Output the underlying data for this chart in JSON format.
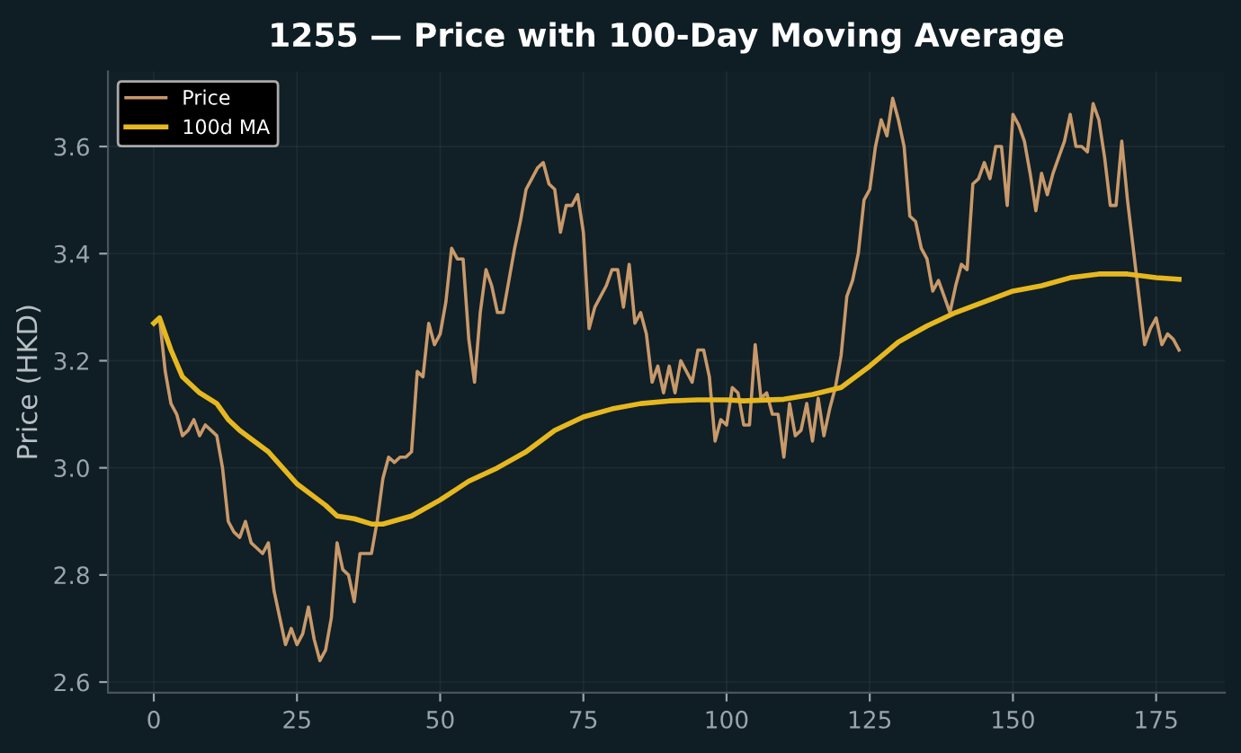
{
  "chart_data": {
    "type": "line",
    "title": "1255 — Price with 100-Day Moving Average",
    "ylabel": "Price (HKD)",
    "series": [
      {
        "name": "Price",
        "color": "#c8996a",
        "x": [
          0,
          1,
          2,
          3,
          4,
          5,
          6,
          7,
          8,
          9,
          10,
          11,
          12,
          13,
          14,
          15,
          16,
          17,
          18,
          19,
          20,
          21,
          22,
          23,
          24,
          25,
          26,
          27,
          28,
          29,
          30,
          31,
          32,
          33,
          34,
          35,
          36,
          37,
          38,
          39,
          40,
          41,
          42,
          43,
          44,
          45,
          46,
          47,
          48,
          49,
          50,
          51,
          52,
          53,
          54,
          55,
          56,
          57,
          58,
          59,
          60,
          61,
          62,
          63,
          64,
          65,
          66,
          67,
          68,
          69,
          70,
          71,
          72,
          73,
          74,
          75,
          76,
          77,
          78,
          79,
          80,
          81,
          82,
          83,
          84,
          85,
          86,
          87,
          88,
          89,
          90,
          91,
          92,
          93,
          94,
          95,
          96,
          97,
          98,
          99,
          100,
          101,
          102,
          103,
          104,
          105,
          106,
          107,
          108,
          109,
          110,
          111,
          112,
          113,
          114,
          115,
          116,
          117,
          118,
          119,
          120,
          121,
          122,
          123,
          124,
          125,
          126,
          127,
          128,
          129,
          130,
          131,
          132,
          133,
          134,
          135,
          136,
          137,
          138,
          139,
          140,
          141,
          142,
          143,
          144,
          145,
          146,
          147,
          148,
          149,
          150,
          151,
          152,
          153,
          154,
          155,
          156,
          157,
          158,
          159,
          160,
          161,
          162,
          163,
          164,
          165,
          166,
          167,
          168,
          169,
          170,
          171,
          172,
          173,
          174,
          175,
          176,
          177,
          178,
          179
        ],
        "values": [
          3.27,
          3.28,
          3.18,
          3.12,
          3.1,
          3.06,
          3.07,
          3.09,
          3.06,
          3.08,
          3.07,
          3.06,
          3.0,
          2.9,
          2.88,
          2.87,
          2.9,
          2.86,
          2.85,
          2.84,
          2.86,
          2.77,
          2.72,
          2.67,
          2.7,
          2.67,
          2.69,
          2.74,
          2.68,
          2.64,
          2.66,
          2.72,
          2.86,
          2.81,
          2.8,
          2.75,
          2.84,
          2.84,
          2.84,
          2.9,
          2.98,
          3.02,
          3.01,
          3.02,
          3.02,
          3.03,
          3.18,
          3.17,
          3.27,
          3.23,
          3.25,
          3.31,
          3.41,
          3.39,
          3.39,
          3.24,
          3.16,
          3.29,
          3.37,
          3.34,
          3.29,
          3.29,
          3.35,
          3.41,
          3.46,
          3.52,
          3.54,
          3.56,
          3.57,
          3.53,
          3.52,
          3.44,
          3.49,
          3.49,
          3.51,
          3.44,
          3.26,
          3.3,
          3.32,
          3.34,
          3.37,
          3.37,
          3.3,
          3.38,
          3.27,
          3.29,
          3.25,
          3.16,
          3.19,
          3.14,
          3.19,
          3.14,
          3.2,
          3.18,
          3.16,
          3.22,
          3.22,
          3.17,
          3.05,
          3.09,
          3.08,
          3.15,
          3.14,
          3.08,
          3.08,
          3.23,
          3.13,
          3.14,
          3.1,
          3.1,
          3.02,
          3.12,
          3.06,
          3.07,
          3.12,
          3.05,
          3.13,
          3.06,
          3.11,
          3.15,
          3.21,
          3.32,
          3.35,
          3.4,
          3.5,
          3.52,
          3.6,
          3.65,
          3.62,
          3.69,
          3.65,
          3.6,
          3.47,
          3.46,
          3.41,
          3.39,
          3.33,
          3.35,
          3.32,
          3.29,
          3.34,
          3.38,
          3.37,
          3.53,
          3.54,
          3.57,
          3.54,
          3.6,
          3.6,
          3.49,
          3.66,
          3.64,
          3.61,
          3.55,
          3.48,
          3.55,
          3.51,
          3.55,
          3.58,
          3.61,
          3.66,
          3.6,
          3.6,
          3.59,
          3.68,
          3.65,
          3.58,
          3.49,
          3.49,
          3.61,
          3.5,
          3.41,
          3.32,
          3.23,
          3.26,
          3.28,
          3.23,
          3.25,
          3.24,
          3.22
        ]
      },
      {
        "name": "100d MA",
        "color": "#e6b820",
        "x": [
          0,
          1,
          3,
          5,
          8,
          11,
          13,
          15,
          20,
          25,
          30,
          32,
          35,
          38,
          40,
          45,
          50,
          55,
          60,
          65,
          70,
          75,
          80,
          85,
          90,
          95,
          100,
          103,
          110,
          115,
          120,
          125,
          130,
          135,
          140,
          145,
          150,
          155,
          160,
          165,
          170,
          175,
          179
        ],
        "values": [
          3.27,
          3.28,
          3.22,
          3.17,
          3.14,
          3.12,
          3.09,
          3.07,
          3.03,
          2.97,
          2.93,
          2.91,
          2.905,
          2.895,
          2.895,
          2.91,
          2.94,
          2.975,
          3.0,
          3.03,
          3.07,
          3.095,
          3.11,
          3.12,
          3.125,
          3.127,
          3.127,
          3.125,
          3.128,
          3.137,
          3.15,
          3.19,
          3.235,
          3.265,
          3.29,
          3.31,
          3.33,
          3.34,
          3.355,
          3.362,
          3.362,
          3.355,
          3.352
        ]
      }
    ],
    "xlim": [
      -8,
      187
    ],
    "xticks": [
      0,
      25,
      50,
      75,
      100,
      125,
      150,
      175
    ],
    "ylim": [
      2.58,
      3.74
    ],
    "yticks": [
      2.6,
      2.8,
      {
        "value": 3.0,
        "label": "3.0"
      },
      3.2,
      3.4,
      3.6
    ],
    "grid": true,
    "legend": "top left",
    "marker": "none",
    "line_style": "solid"
  }
}
